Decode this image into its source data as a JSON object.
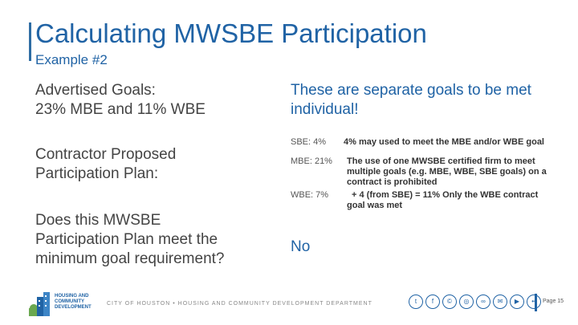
{
  "header": {
    "title": "Calculating MWSBE Participation",
    "subtitle": "Example #2"
  },
  "left": {
    "advertised_goals_line1": "Advertised Goals:",
    "advertised_goals_line2": "23% MBE and 11% WBE",
    "proposed_line1": "Contractor Proposed",
    "proposed_line2": "Participation Plan:",
    "question_line1": "Does this MWSBE",
    "question_line2": "Participation Plan meet the",
    "question_line3": "minimum goal requirement?"
  },
  "right": {
    "heading_line1": "These are separate goals to be met",
    "heading_line2": "individual!",
    "sbe_label": "SBE: 4%",
    "sbe_note": "4% may used to meet the MBE and/or WBE goal",
    "mbe_label": "MBE: 21%",
    "mbe_note_line1": "The use of one MWSBE certified firm to meet",
    "mbe_note_line2": "multiple goals (e.g. MBE, WBE, SBE goals) on a",
    "mbe_note_line3": "contract is prohibited",
    "wbe_label": "WBE: 7%",
    "wbe_note_line1": "+ 4 (from SBE) = 11% Only the WBE contract",
    "wbe_note_line2": "goal was met",
    "answer": "No"
  },
  "footer": {
    "department": "CITY OF HOUSTON • HOUSING AND COMMUNITY DEVELOPMENT DEPARTMENT",
    "page_label": "Page 15",
    "logo_text_line1": "HOUSING AND",
    "logo_text_line2": "COMMUNITY",
    "logo_text_line3": "DEVELOPMENT",
    "social_icons": [
      "twitter-icon",
      "facebook-icon",
      "copyright-icon",
      "instagram-icon",
      "link-icon",
      "email-icon",
      "youtube-icon",
      "flickr-icon"
    ]
  },
  "colors": {
    "accent": "#2063a5",
    "body_text": "#444444"
  }
}
